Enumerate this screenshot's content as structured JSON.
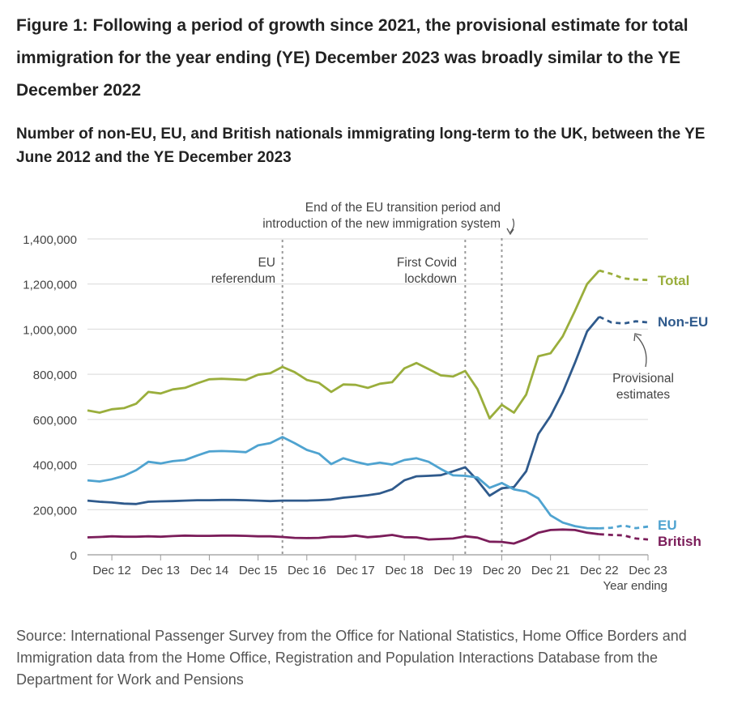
{
  "title": "Figure 1: Following a period of growth since 2021, the provisional estimate for total immigration for the year ending (YE) December 2023 was broadly similar to the YE December 2022",
  "subtitle": "Number of non-EU, EU, and British nationals immigrating long-term to the UK, between the YE June 2012 and the YE December 2023",
  "source": "Source: International Passenger Survey from the Office for National Statistics, Home Office Borders and Immigration data from the Home Office, Registration and Population Interactions Database from the Department for Work and Pensions",
  "colors": {
    "total": "#9aae3c",
    "non_eu": "#2f5a8c",
    "eu": "#4fa3d0",
    "british": "#7b1d5a",
    "grid": "#d9d9d9",
    "axis": "#999999",
    "text": "#444444"
  },
  "chart_data": {
    "type": "line",
    "xlabel": "Year ending",
    "ylabel": "",
    "ylim": [
      0,
      1400000
    ],
    "yticks": [
      0,
      200000,
      400000,
      600000,
      800000,
      1000000,
      1200000,
      1400000
    ],
    "ytick_labels": [
      "0",
      "200,000",
      "400,000",
      "600,000",
      "800,000",
      "1,000,000",
      "1,200,000",
      "1,400,000"
    ],
    "xticks": [
      "Dec 12",
      "Dec 13",
      "Dec 14",
      "Dec 15",
      "Dec 16",
      "Dec 17",
      "Dec 18",
      "Dec 19",
      "Dec 20",
      "Dec 21",
      "Dec 22",
      "Dec 23"
    ],
    "x": [
      "Jun 12",
      "Sep 12",
      "Dec 12",
      "Mar 13",
      "Jun 13",
      "Sep 13",
      "Dec 13",
      "Mar 14",
      "Jun 14",
      "Sep 14",
      "Dec 14",
      "Mar 15",
      "Jun 15",
      "Sep 15",
      "Dec 15",
      "Mar 16",
      "Jun 16",
      "Sep 16",
      "Dec 16",
      "Mar 17",
      "Jun 17",
      "Sep 17",
      "Dec 17",
      "Mar 18",
      "Jun 18",
      "Sep 18",
      "Dec 18",
      "Mar 19",
      "Jun 19",
      "Sep 19",
      "Dec 19",
      "Mar 20",
      "Jun 20",
      "Sep 20",
      "Dec 20",
      "Mar 21",
      "Jun 21",
      "Sep 21",
      "Dec 21",
      "Mar 22",
      "Jun 22",
      "Sep 22",
      "Dec 22",
      "Mar 23",
      "Jun 23",
      "Sep 23",
      "Dec 23"
    ],
    "provisional_from": "Dec 22",
    "series": [
      {
        "name": "Total",
        "key": "total",
        "values": [
          640000,
          630000,
          645000,
          650000,
          670000,
          722000,
          715000,
          733000,
          740000,
          760000,
          778000,
          780000,
          778000,
          775000,
          798000,
          805000,
          833000,
          810000,
          775000,
          762000,
          722000,
          755000,
          753000,
          740000,
          758000,
          765000,
          826000,
          850000,
          823000,
          795000,
          790000,
          815000,
          735000,
          605000,
          665000,
          630000,
          710000,
          880000,
          893000,
          968000,
          1080000,
          1200000,
          1260000,
          1245000,
          1225000,
          1220000,
          1218000
        ]
      },
      {
        "name": "Non-EU",
        "key": "non_eu",
        "values": [
          240000,
          235000,
          232000,
          227000,
          225000,
          235000,
          237000,
          238000,
          240000,
          242000,
          242000,
          243000,
          243000,
          242000,
          240000,
          238000,
          240000,
          240000,
          240000,
          242000,
          245000,
          253000,
          258000,
          264000,
          272000,
          290000,
          330000,
          348000,
          350000,
          353000,
          370000,
          388000,
          330000,
          262000,
          295000,
          300000,
          370000,
          535000,
          615000,
          720000,
          850000,
          990000,
          1055000,
          1030000,
          1025000,
          1035000,
          1030000
        ]
      },
      {
        "name": "EU",
        "key": "eu",
        "values": [
          330000,
          325000,
          335000,
          350000,
          375000,
          412000,
          405000,
          415000,
          420000,
          440000,
          458000,
          460000,
          458000,
          455000,
          485000,
          495000,
          522000,
          495000,
          465000,
          448000,
          402000,
          428000,
          412000,
          400000,
          408000,
          400000,
          420000,
          428000,
          412000,
          380000,
          352000,
          350000,
          343000,
          297000,
          318000,
          290000,
          280000,
          250000,
          175000,
          143000,
          127000,
          118000,
          117000,
          120000,
          130000,
          118000,
          125000
        ]
      },
      {
        "name": "British",
        "key": "british",
        "values": [
          77000,
          79000,
          82000,
          80000,
          80000,
          82000,
          80000,
          83000,
          85000,
          84000,
          84000,
          85000,
          85000,
          84000,
          82000,
          82000,
          79000,
          75000,
          74000,
          75000,
          80000,
          80000,
          85000,
          78000,
          82000,
          88000,
          78000,
          77000,
          68000,
          70000,
          72000,
          82000,
          76000,
          58000,
          57000,
          50000,
          70000,
          98000,
          110000,
          112000,
          110000,
          98000,
          91000,
          88000,
          86000,
          72000,
          68000
        ]
      }
    ],
    "series_labels": [
      "Total",
      "Non-EU",
      "EU",
      "British"
    ],
    "annotations": [
      {
        "key": "eu_ref",
        "x": "Jun 16",
        "lines": [
          "EU",
          "referendum"
        ]
      },
      {
        "key": "covid",
        "x": "Mar 20",
        "lines": [
          "First Covid",
          "lockdown"
        ]
      },
      {
        "key": "transition",
        "x": "Dec 20",
        "lines": [
          "End of the EU transition period and",
          "introduction of the new immigration system"
        ]
      },
      {
        "key": "provisional",
        "lines": [
          "Provisional",
          "estimates"
        ]
      }
    ]
  }
}
